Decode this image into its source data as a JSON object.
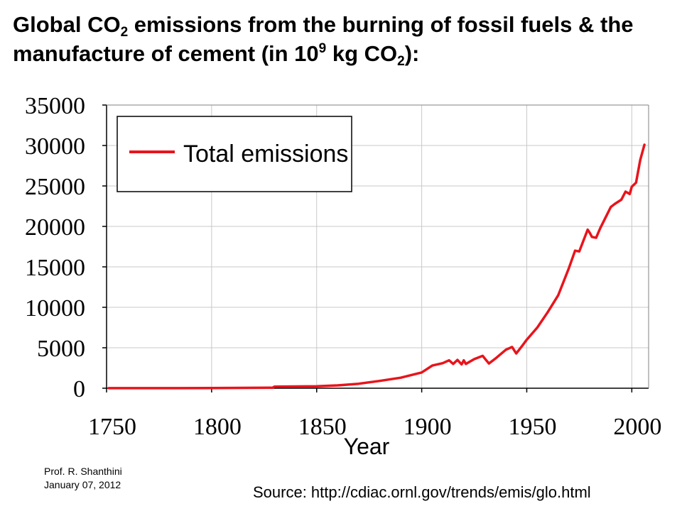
{
  "header": {
    "title_part1": "Global CO",
    "title_sub1": "2",
    "title_part2": " emissions from the burning of fossil fuels & the manufacture of cement (in 10",
    "title_sup": "9",
    "title_part3": " kg CO",
    "title_sub2": "2",
    "title_part4": "):"
  },
  "footer": {
    "author": "Prof. R. Shanthini",
    "date": "January 07, 2012",
    "source": "Source: http://cdiac.ornl.gov/trends/emis/glo.html"
  },
  "chart_data": {
    "type": "line",
    "xlabel": "Year",
    "ylabel": "",
    "xlim": [
      1750,
      2008
    ],
    "ylim": [
      0,
      35000
    ],
    "xticks": [
      1750,
      1800,
      1850,
      1900,
      1950,
      2000
    ],
    "yticks": [
      0,
      5000,
      10000,
      15000,
      20000,
      25000,
      30000,
      35000
    ],
    "grid": true,
    "legend": "top-left",
    "line_color": "#e8141c",
    "series": [
      {
        "name": "Total emissions",
        "x": [
          1751,
          1800,
          1829,
          1830,
          1840,
          1850,
          1860,
          1870,
          1880,
          1890,
          1900,
          1905,
          1910,
          1913,
          1915,
          1917,
          1919,
          1920,
          1921,
          1925,
          1929,
          1932,
          1935,
          1940,
          1943,
          1945,
          1948,
          1950,
          1955,
          1960,
          1965,
          1970,
          1973,
          1975,
          1979,
          1980,
          1981,
          1983,
          1985,
          1990,
          1992,
          1995,
          1997,
          1999,
          2000,
          2002,
          2004,
          2006
        ],
        "y": [
          10,
          20,
          60,
          200,
          220,
          240,
          350,
          550,
          900,
          1300,
          1950,
          2800,
          3100,
          3450,
          3000,
          3500,
          2950,
          3450,
          3000,
          3600,
          4000,
          3050,
          3650,
          4750,
          5100,
          4300,
          5300,
          6000,
          7500,
          9400,
          11500,
          14800,
          17000,
          16900,
          19600,
          19200,
          18700,
          18600,
          19800,
          22400,
          22800,
          23300,
          24300,
          24000,
          24900,
          25400,
          28200,
          30100
        ]
      }
    ]
  }
}
